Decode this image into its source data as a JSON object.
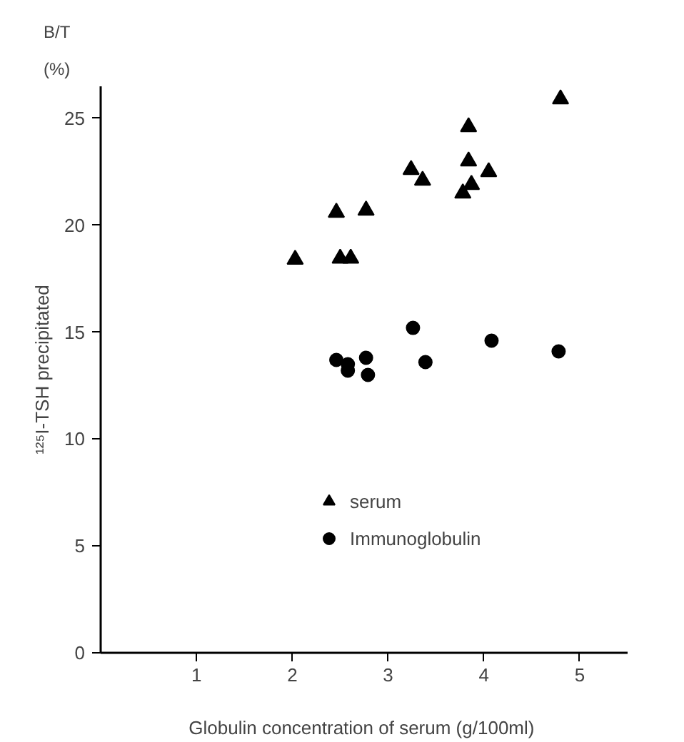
{
  "chart_data": {
    "type": "scatter",
    "xlabel": "Globulin concentration of serum  (g/100ml)",
    "ylabel": "¹²⁵I-TSH precipitated",
    "annotations": [
      "B/T",
      "(%)"
    ],
    "xlim": [
      0,
      5.5
    ],
    "ylim": [
      0,
      26.5
    ],
    "xticks": [
      1,
      2,
      3,
      4,
      5
    ],
    "yticks": [
      0,
      5,
      10,
      15,
      20,
      25
    ],
    "grid": false,
    "legend": "bottom",
    "series": [
      {
        "name": "serum",
        "color": "#000000",
        "marker": "triangle",
        "x": [
          2.03,
          2.46,
          2.77,
          2.5,
          2.61,
          3.24,
          3.36,
          3.84,
          3.84,
          4.05,
          3.87,
          3.78,
          4.8
        ],
        "values": [
          18.4,
          20.6,
          20.7,
          18.45,
          18.45,
          22.6,
          22.1,
          24.6,
          23.0,
          22.5,
          21.9,
          21.5,
          25.9
        ]
      },
      {
        "name": "Immunoglobulin",
        "color": "#000000",
        "marker": "circle",
        "x": [
          2.46,
          2.58,
          2.58,
          2.77,
          2.79,
          3.26,
          3.39,
          4.08,
          4.78
        ],
        "values": [
          13.7,
          13.5,
          13.2,
          13.8,
          13.0,
          15.2,
          13.6,
          14.6,
          14.1
        ]
      }
    ]
  }
}
